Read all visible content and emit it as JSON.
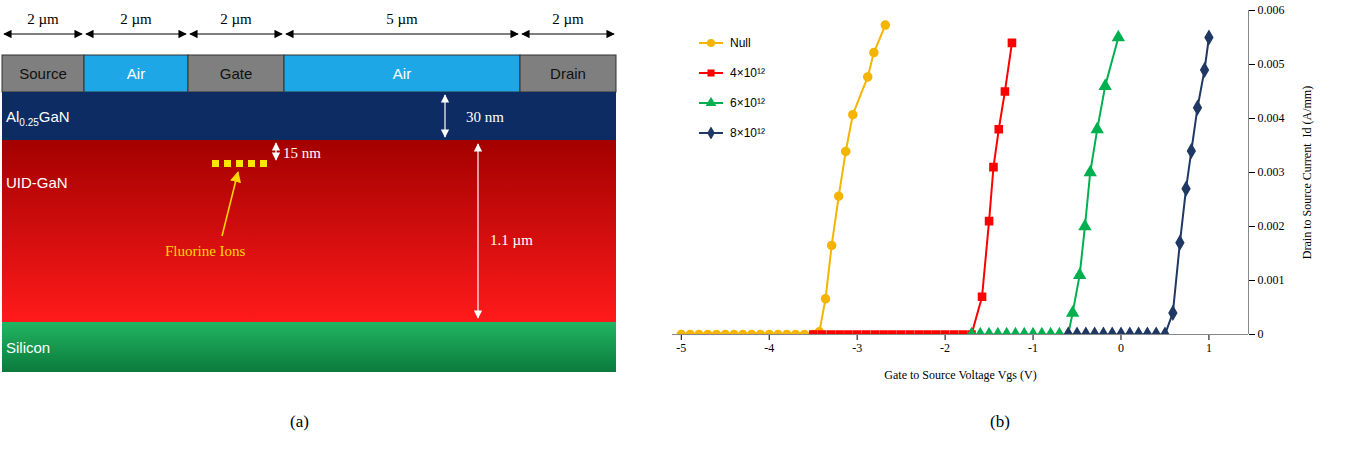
{
  "diagram": {
    "dimensions": [
      "2 µm",
      "2 µm",
      "2 µm",
      "5 µm",
      "2 µm"
    ],
    "top_row": [
      "Source",
      "Air",
      "Gate",
      "Air",
      "Drain"
    ],
    "layers": [
      {
        "label": [
          "Al",
          "0.25",
          "GaN"
        ],
        "thickness": "30 nm"
      },
      {
        "label": [
          "UID-GaN"
        ],
        "thickness": "1.1 µm"
      },
      {
        "label": [
          "Silicon"
        ]
      }
    ],
    "implant": {
      "label": "Fluorine Ions",
      "depth": "15 nm"
    },
    "caption": "(a)"
  },
  "chart_data": {
    "type": "line",
    "caption": "(b)",
    "x_label": "Gate to Source Voltage Vgs (V)",
    "y_label": "Drain to Source Current  Id (A/mm)",
    "xlim": [
      -5.1,
      1.45
    ],
    "xticks": [
      -5,
      -4,
      -3,
      -2,
      -1,
      0,
      1
    ],
    "ylim": [
      0,
      0.006
    ],
    "yticks": [
      0,
      0.001,
      0.002,
      0.003,
      0.004,
      0.005,
      0.006
    ],
    "legend": "top-left",
    "series": [
      {
        "name": "Null",
        "color": "#f4b400",
        "marker": "circle",
        "x": [
          -5,
          -4.9,
          -4.8,
          -4.7,
          -4.6,
          -4.5,
          -4.4,
          -4.3,
          -4.2,
          -4.1,
          -4,
          -3.9,
          -3.8,
          -3.7,
          -3.6,
          -3.5,
          -3.43,
          -3.36,
          -3.29,
          -3.21,
          -3.13,
          -3.05,
          -2.88,
          -2.81,
          -2.68
        ],
        "values": [
          0,
          0,
          0,
          0,
          0,
          0,
          0,
          0,
          0,
          0,
          0,
          0,
          0,
          0,
          0,
          0,
          5e-05,
          0.00066,
          0.00165,
          0.00256,
          0.00339,
          0.00407,
          0.00477,
          0.00522,
          0.00573
        ]
      },
      {
        "name": "4×10¹²",
        "color": "#ff0000",
        "marker": "square",
        "x": [
          -3.5,
          -3.4,
          -3.3,
          -3.2,
          -3.1,
          -3,
          -2.9,
          -2.8,
          -2.7,
          -2.6,
          -2.5,
          -2.4,
          -2.3,
          -2.2,
          -2.1,
          -2,
          -1.9,
          -1.8,
          -1.7,
          -1.58,
          -1.5,
          -1.45,
          -1.39,
          -1.32,
          -1.24
        ],
        "values": [
          0,
          0,
          0,
          0,
          0,
          0,
          0,
          0,
          0,
          0,
          0,
          0,
          0,
          0,
          0,
          0,
          0,
          0,
          0,
          0.0007,
          0.0021,
          0.0031,
          0.0038,
          0.0045,
          0.0054
        ]
      },
      {
        "name": "6×10¹²",
        "color": "#00b050",
        "marker": "triangle",
        "x": [
          -1.7,
          -1.6,
          -1.5,
          -1.4,
          -1.3,
          -1.2,
          -1.1,
          -1,
          -0.9,
          -0.8,
          -0.7,
          -0.6,
          -0.55,
          -0.47,
          -0.41,
          -0.35,
          -0.27,
          -0.18,
          -0.03
        ],
        "values": [
          0,
          0,
          0,
          0,
          0,
          0,
          0,
          0,
          0,
          0,
          0,
          0,
          0.0004,
          0.0011,
          0.002,
          0.003,
          0.0038,
          0.0046,
          0.0055
        ]
      },
      {
        "name": "8×10¹²",
        "color": "#1f3864",
        "marker": "diamond",
        "x": [
          -0.6,
          -0.5,
          -0.4,
          -0.3,
          -0.2,
          -0.1,
          0,
          0.1,
          0.2,
          0.3,
          0.4,
          0.5,
          0.59,
          0.67,
          0.74,
          0.8,
          0.87,
          0.95,
          1
        ],
        "values": [
          0,
          0,
          0,
          0,
          0,
          0,
          0,
          0,
          0,
          0,
          0,
          0,
          0.0004,
          0.0017,
          0.0027,
          0.0034,
          0.0042,
          0.0049,
          0.0055
        ]
      }
    ]
  }
}
